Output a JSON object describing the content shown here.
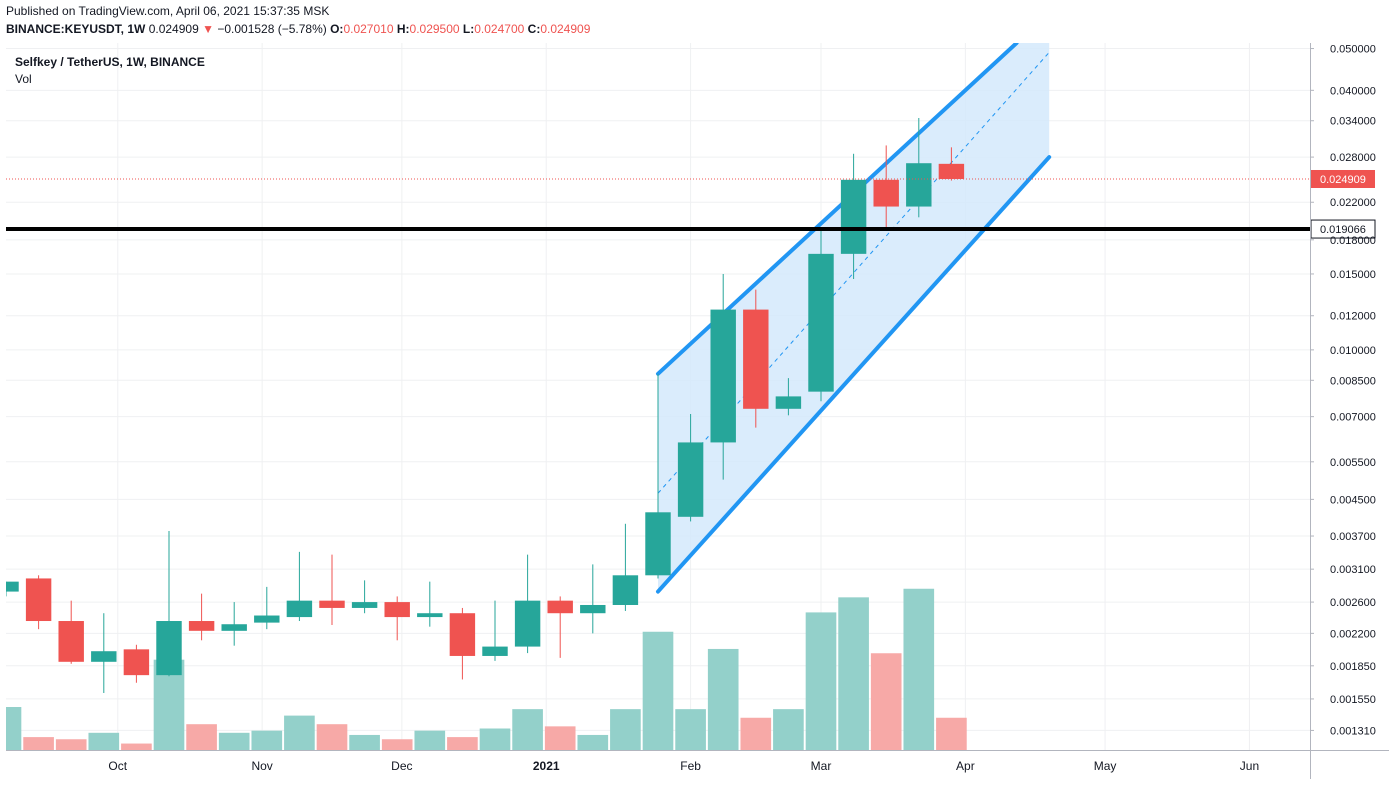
{
  "header": {
    "published": "Published on TradingView.com, April 06, 2021 15:37:35 MSK",
    "symbol": "BINANCE:KEYUSDT, 1W",
    "last": "0.024909",
    "arrow": "▼",
    "change": "−0.001528 (−5.78%)",
    "o_label": "O:",
    "o_value": "0.027010",
    "h_label": "H:",
    "h_value": "0.029500",
    "l_label": "L:",
    "l_value": "0.024700",
    "c_label": "C:",
    "c_value": "0.024909"
  },
  "legend": {
    "title": "Selfkey / TetherUS, 1W, BINANCE",
    "volume": "Vol"
  },
  "colors": {
    "up": "#26a69a",
    "down": "#ef5350",
    "up_volume": "#93d0ca",
    "down_volume": "#f7a9a7",
    "channel_line": "#2196f3",
    "channel_fill": "#d3e9fc",
    "support_line": "#000000",
    "grid": "#eff0f2"
  },
  "chart_data": {
    "type": "candlestick",
    "title": "Selfkey / TetherUS, 1W, BINANCE",
    "y_scale": "log",
    "ylim": [
      0.00118,
      0.0515
    ],
    "y_ticks": [
      "0.050000",
      "0.040000",
      "0.034000",
      "0.028000",
      "0.022000",
      "0.018000",
      "0.015000",
      "0.012000",
      "0.010000",
      "0.008500",
      "0.007000",
      "0.005500",
      "0.004500",
      "0.003700",
      "0.003100",
      "0.002600",
      "0.002200",
      "0.001850",
      "0.001550",
      "0.001310"
    ],
    "x_ticks": [
      {
        "label": "Oct",
        "date": "2020-10-01"
      },
      {
        "label": "Nov",
        "date": "2020-11-01"
      },
      {
        "label": "Dec",
        "date": "2020-12-01"
      },
      {
        "label": "2021",
        "date": "2021-01-01"
      },
      {
        "label": "Feb",
        "date": "2021-02-01"
      },
      {
        "label": "Mar",
        "date": "2021-03-01"
      },
      {
        "label": "Apr",
        "date": "2021-04-01"
      },
      {
        "label": "May",
        "date": "2021-05-01"
      },
      {
        "label": "Jun",
        "date": "2021-06-01"
      }
    ],
    "x_start": "2020-09-07",
    "x_end": "2021-06-14",
    "candles": [
      {
        "date": "2020-09-07",
        "o": 0.00275,
        "h": 0.0029,
        "l": 0.00268,
        "c": 0.0029
      },
      {
        "date": "2020-09-14",
        "o": 0.00295,
        "h": 0.003,
        "l": 0.00225,
        "c": 0.00235
      },
      {
        "date": "2020-09-21",
        "o": 0.00235,
        "h": 0.00262,
        "l": 0.00187,
        "c": 0.00189
      },
      {
        "date": "2020-09-28",
        "o": 0.00189,
        "h": 0.00245,
        "l": 0.0016,
        "c": 0.002
      },
      {
        "date": "2020-10-05",
        "o": 0.00202,
        "h": 0.00207,
        "l": 0.00169,
        "c": 0.00176
      },
      {
        "date": "2020-10-12",
        "o": 0.00176,
        "h": 0.0038,
        "l": 0.00175,
        "c": 0.00235
      },
      {
        "date": "2020-10-19",
        "o": 0.00235,
        "h": 0.00272,
        "l": 0.00212,
        "c": 0.00223
      },
      {
        "date": "2020-10-26",
        "o": 0.00223,
        "h": 0.0026,
        "l": 0.00206,
        "c": 0.00231
      },
      {
        "date": "2020-11-02",
        "o": 0.00233,
        "h": 0.00282,
        "l": 0.00225,
        "c": 0.00242
      },
      {
        "date": "2020-11-09",
        "o": 0.0024,
        "h": 0.0034,
        "l": 0.00235,
        "c": 0.00262
      },
      {
        "date": "2020-11-16",
        "o": 0.00262,
        "h": 0.00335,
        "l": 0.0023,
        "c": 0.00252
      },
      {
        "date": "2020-11-23",
        "o": 0.00252,
        "h": 0.00292,
        "l": 0.00245,
        "c": 0.0026
      },
      {
        "date": "2020-11-30",
        "o": 0.0026,
        "h": 0.00268,
        "l": 0.00212,
        "c": 0.0024
      },
      {
        "date": "2020-12-07",
        "o": 0.0024,
        "h": 0.0029,
        "l": 0.00228,
        "c": 0.00245
      },
      {
        "date": "2020-12-14",
        "o": 0.00245,
        "h": 0.00252,
        "l": 0.00172,
        "c": 0.00195
      },
      {
        "date": "2020-12-21",
        "o": 0.00195,
        "h": 0.00262,
        "l": 0.0019,
        "c": 0.00205
      },
      {
        "date": "2020-12-28",
        "o": 0.00205,
        "h": 0.00335,
        "l": 0.00198,
        "c": 0.00262
      },
      {
        "date": "2021-01-04",
        "o": 0.00262,
        "h": 0.00268,
        "l": 0.00193,
        "c": 0.00245
      },
      {
        "date": "2021-01-11",
        "o": 0.00245,
        "h": 0.00318,
        "l": 0.0022,
        "c": 0.00256
      },
      {
        "date": "2021-01-18",
        "o": 0.00256,
        "h": 0.00395,
        "l": 0.00248,
        "c": 0.003
      },
      {
        "date": "2021-01-25",
        "o": 0.003,
        "h": 0.0088,
        "l": 0.00295,
        "c": 0.0042
      },
      {
        "date": "2021-02-01",
        "o": 0.0041,
        "h": 0.0071,
        "l": 0.004,
        "c": 0.0061
      },
      {
        "date": "2021-02-08",
        "o": 0.0061,
        "h": 0.015,
        "l": 0.005,
        "c": 0.0124
      },
      {
        "date": "2021-02-15",
        "o": 0.0124,
        "h": 0.0138,
        "l": 0.0066,
        "c": 0.0073
      },
      {
        "date": "2021-02-22",
        "o": 0.0073,
        "h": 0.0086,
        "l": 0.00705,
        "c": 0.0078
      },
      {
        "date": "2021-03-01",
        "o": 0.008,
        "h": 0.0189,
        "l": 0.0076,
        "c": 0.0167
      },
      {
        "date": "2021-03-08",
        "o": 0.0167,
        "h": 0.0285,
        "l": 0.0146,
        "c": 0.0248
      },
      {
        "date": "2021-03-15",
        "o": 0.0248,
        "h": 0.0298,
        "l": 0.019,
        "c": 0.0215
      },
      {
        "date": "2021-03-22",
        "o": 0.0215,
        "h": 0.0345,
        "l": 0.0203,
        "c": 0.0271
      },
      {
        "date": "2021-03-29",
        "o": 0.02701,
        "h": 0.0295,
        "l": 0.0247,
        "c": 0.02491
      }
    ],
    "volume_scale_max": 100,
    "volume": [
      20,
      6,
      5,
      8,
      3,
      42,
      12,
      8,
      9,
      16,
      12,
      7,
      5,
      9,
      6,
      10,
      19,
      11,
      7,
      19,
      55,
      19,
      47,
      15,
      19,
      64,
      71,
      45,
      75,
      15
    ],
    "channel": {
      "upper": [
        {
          "date": "2021-01-25",
          "price": 0.0088
        },
        {
          "date": "2021-04-12",
          "price": 0.0515
        }
      ],
      "lower": [
        {
          "date": "2021-01-25",
          "price": 0.00275
        },
        {
          "date": "2021-04-19",
          "price": 0.028
        }
      ],
      "mid": [
        {
          "date": "2021-01-25",
          "price": 0.00465
        },
        {
          "date": "2021-04-19",
          "price": 0.049
        }
      ]
    },
    "horizontal_line": {
      "price": 0.019066,
      "label": "0.019066"
    },
    "last_price": {
      "price": 0.024909,
      "label": "0.024909"
    }
  }
}
